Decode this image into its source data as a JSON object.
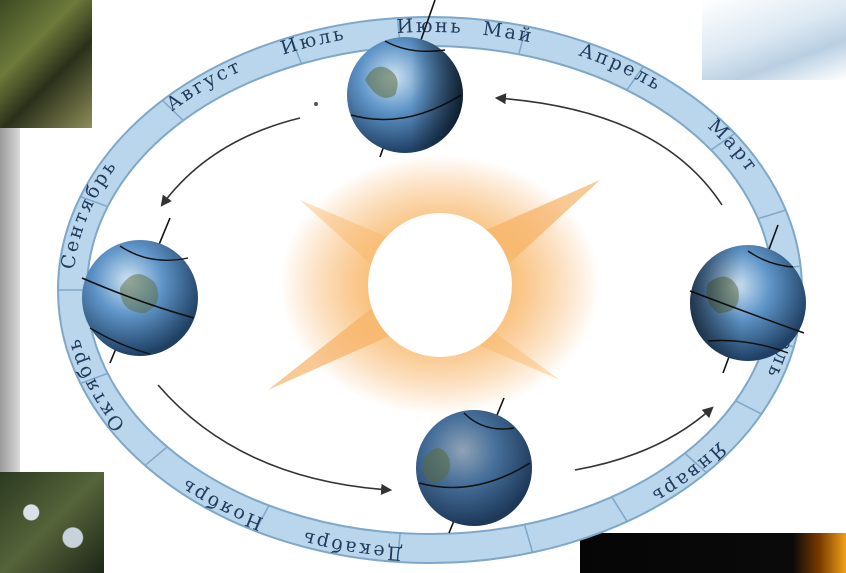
{
  "months": [
    "Январь",
    "Февраль",
    "Март",
    "Апрель",
    "Май",
    "Июнь",
    "Июль",
    "Август",
    "Сентябрь",
    "Октябрь",
    "Ноябрь",
    "Декабрь"
  ],
  "colors": {
    "ring_fill": "#b9d6ec",
    "ring_stroke": "#7fa7c8",
    "label": "#1f3a5c",
    "sun_glow": "#f6a24a",
    "earth_ocean": "#4f88c0",
    "earth_land": "#5a6a3a",
    "arrow": "#333333"
  },
  "scene": {
    "center_body": "sun",
    "orbit_direction": "counterclockwise",
    "earth_count": 4,
    "decorative_photos": [
      "forest-photo",
      "snow-photo",
      "trees-photo",
      "fire-photo"
    ]
  }
}
